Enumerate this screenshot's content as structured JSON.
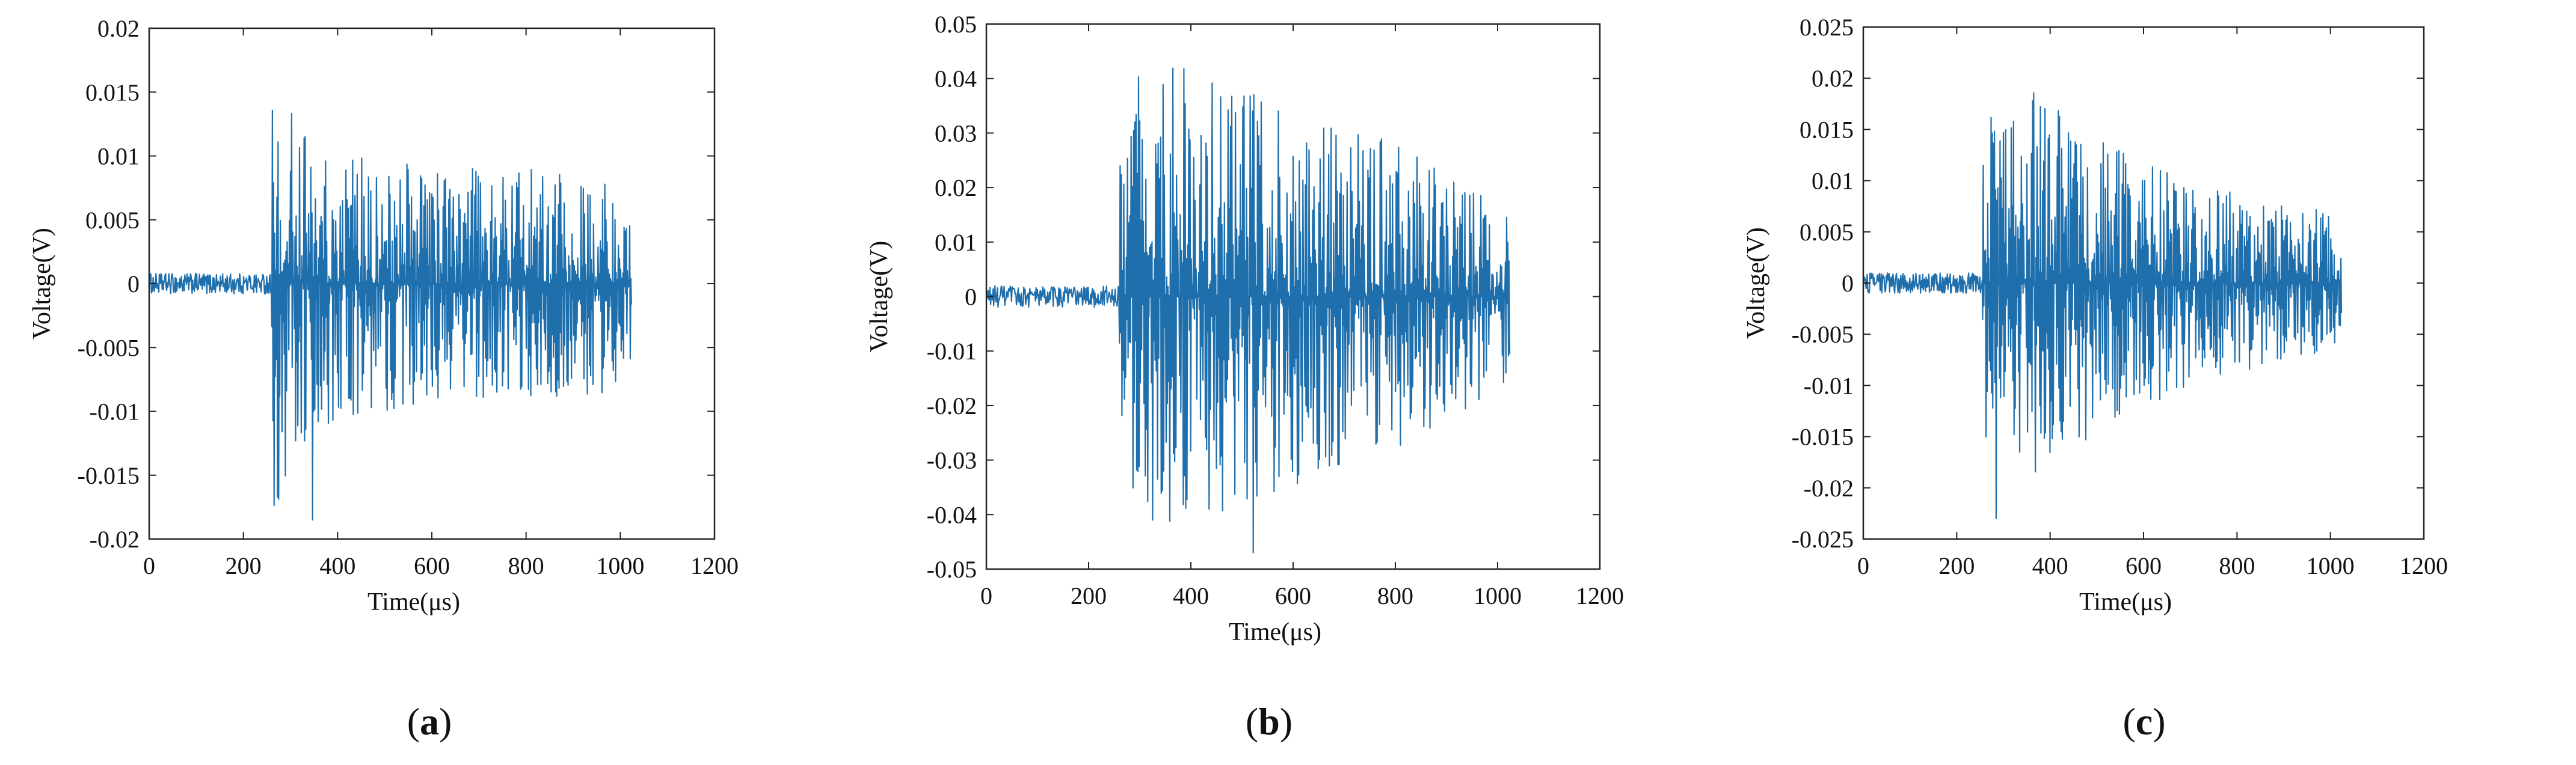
{
  "chart_data": [
    {
      "type": "line",
      "panel_label": "a",
      "xlabel": "Time(μs)",
      "ylabel": "Voltage(V)",
      "xlim": [
        0,
        1200
      ],
      "ylim": [
        -0.02,
        0.02
      ],
      "xticks": [
        "0",
        "200",
        "400",
        "600",
        "800",
        "1000",
        "1200"
      ],
      "yticks": [
        "-0.02",
        "-0.015",
        "-0.01",
        "-0.005",
        "0",
        "0.005",
        "0.01",
        "0.015",
        "0.02"
      ],
      "x_range": [
        0,
        1024
      ],
      "onset_time": 260,
      "pre_noise_amplitude": 0.0008,
      "envelope": [
        [
          260,
          0.018
        ],
        [
          300,
          0.015
        ],
        [
          360,
          0.011
        ],
        [
          450,
          0.011
        ],
        [
          600,
          0.009
        ],
        [
          800,
          0.009
        ],
        [
          1000,
          0.0085
        ],
        [
          1024,
          0.006
        ]
      ],
      "min_peak": -0.0185,
      "color": "#1f6fad",
      "grid": false
    },
    {
      "type": "line",
      "panel_label": "b",
      "xlabel": "Time(μs)",
      "ylabel": "Voltage(V)",
      "xlim": [
        0,
        1200
      ],
      "ylim": [
        -0.05,
        0.05
      ],
      "xticks": [
        "0",
        "200",
        "400",
        "600",
        "800",
        "1000",
        "1200"
      ],
      "yticks": [
        "-0.05",
        "-0.04",
        "-0.03",
        "-0.02",
        "-0.01",
        "0",
        "0.01",
        "0.02",
        "0.03",
        "0.04",
        "0.05"
      ],
      "x_range": [
        0,
        1024
      ],
      "onset_time": 260,
      "pre_noise_amplitude": 0.002,
      "envelope": [
        [
          260,
          0.025
        ],
        [
          300,
          0.042
        ],
        [
          420,
          0.042
        ],
        [
          600,
          0.035
        ],
        [
          800,
          0.028
        ],
        [
          950,
          0.02
        ],
        [
          1024,
          0.015
        ]
      ],
      "min_peak": -0.047,
      "color": "#1f6fad",
      "grid": false
    },
    {
      "type": "line",
      "panel_label": "c",
      "xlabel": "Time(μs)",
      "ylabel": "Voltage(V)",
      "xlim": [
        0,
        1200
      ],
      "ylim": [
        -0.025,
        0.025
      ],
      "xticks": [
        "0",
        "200",
        "400",
        "600",
        "800",
        "1000",
        "1200"
      ],
      "yticks": [
        "-0.025",
        "-0.02",
        "-0.015",
        "-0.01",
        "-0.005",
        "0",
        "0.005",
        "0.01",
        "0.015",
        "0.02",
        "0.025"
      ],
      "x_range": [
        0,
        1024
      ],
      "onset_time": 255,
      "pre_noise_amplitude": 0.001,
      "envelope": [
        [
          255,
          0.015
        ],
        [
          320,
          0.02
        ],
        [
          450,
          0.016
        ],
        [
          600,
          0.012
        ],
        [
          800,
          0.009
        ],
        [
          1000,
          0.007
        ],
        [
          1024,
          0.004
        ]
      ],
      "min_peak": -0.023,
      "color": "#1f6fad",
      "grid": false
    }
  ]
}
